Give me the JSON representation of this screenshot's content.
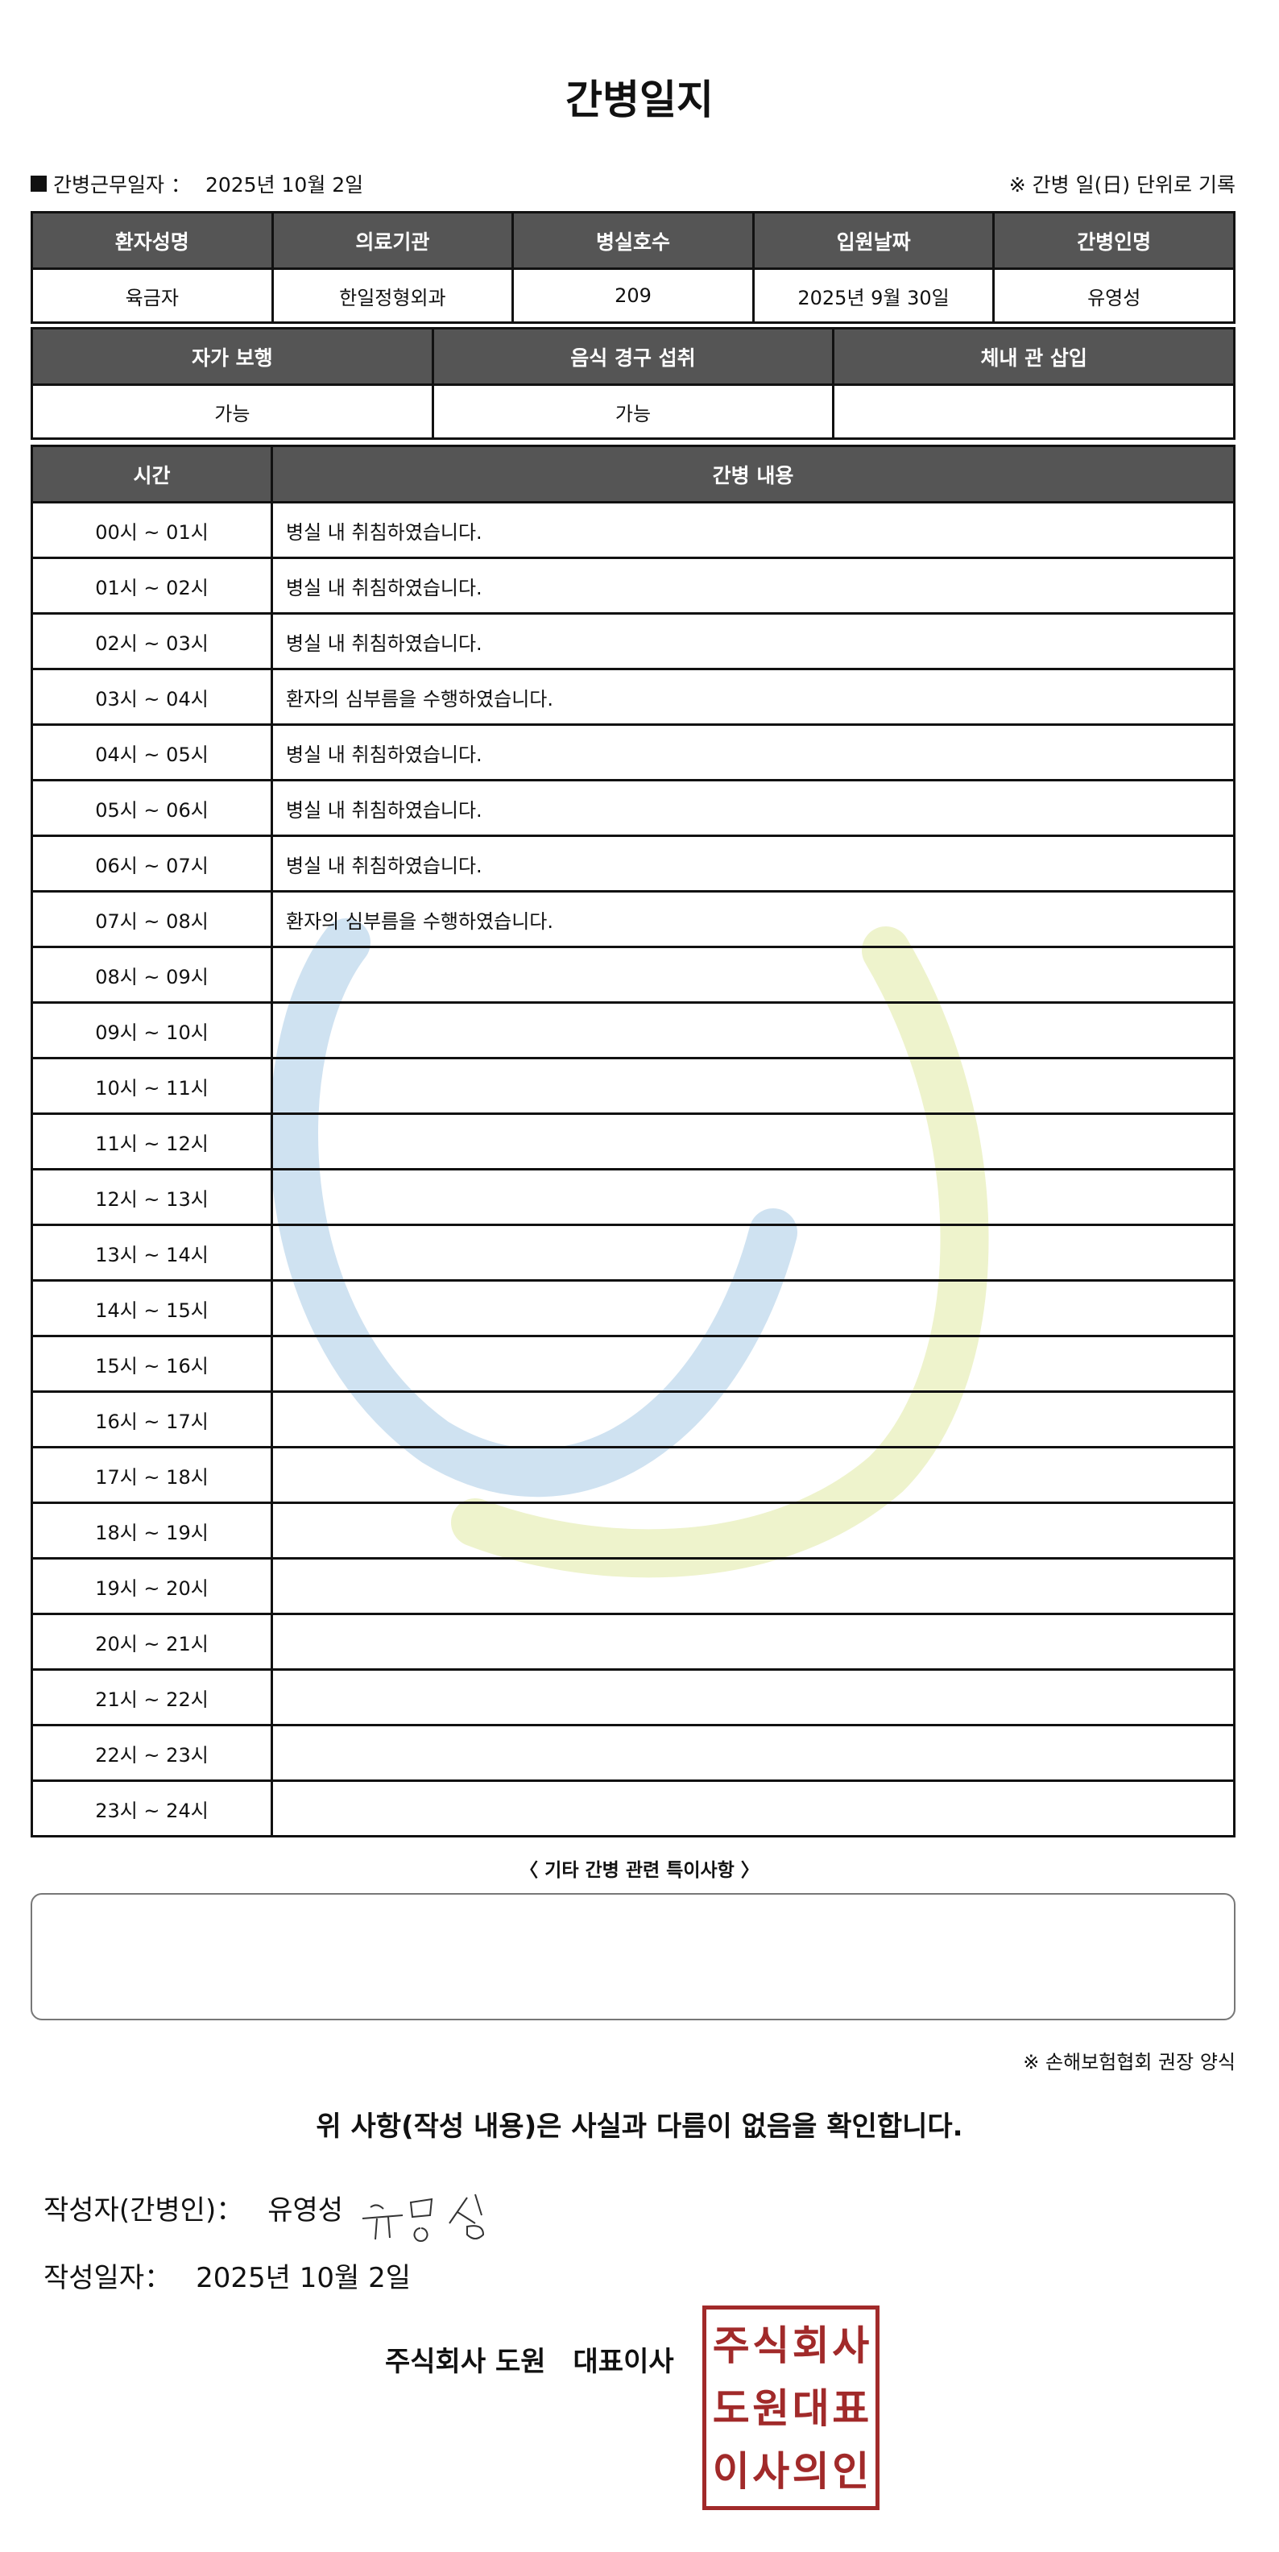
{
  "title": "간병일지",
  "meta": {
    "work_date_label": "간병근무일자 ：",
    "work_date": "2025년 10월 2일",
    "note": "※ 간병 일(日) 단위로 기록"
  },
  "patient_table": {
    "headers": [
      "환자성명",
      "의료기관",
      "병실호수",
      "입원날짜",
      "간병인명"
    ],
    "values": [
      "육금자",
      "한일정형외과",
      "209",
      "2025년 9월 30일",
      "유영성"
    ]
  },
  "status_table": {
    "headers": [
      "자가 보행",
      "음식 경구 섭취",
      "체내 관 삽입"
    ],
    "values": [
      "가능",
      "가능",
      ""
    ]
  },
  "log_table": {
    "headers": [
      "시간",
      "간병 내용"
    ],
    "rows": [
      [
        "00시 ~ 01시",
        "병실 내 취침하였습니다."
      ],
      [
        "01시 ~ 02시",
        "병실 내 취침하였습니다."
      ],
      [
        "02시 ~ 03시",
        "병실 내 취침하였습니다."
      ],
      [
        "03시 ~ 04시",
        "환자의 심부름을 수행하였습니다."
      ],
      [
        "04시 ~ 05시",
        "병실 내 취침하였습니다."
      ],
      [
        "05시 ~ 06시",
        "병실 내 취침하였습니다."
      ],
      [
        "06시 ~ 07시",
        "병실 내 취침하였습니다."
      ],
      [
        "07시 ~ 08시",
        "환자의 심부름을 수행하였습니다."
      ],
      [
        "08시 ~ 09시",
        ""
      ],
      [
        "09시 ~ 10시",
        ""
      ],
      [
        "10시 ~ 11시",
        ""
      ],
      [
        "11시 ~ 12시",
        ""
      ],
      [
        "12시 ~ 13시",
        ""
      ],
      [
        "13시 ~ 14시",
        ""
      ],
      [
        "14시 ~ 15시",
        ""
      ],
      [
        "15시 ~ 16시",
        ""
      ],
      [
        "16시 ~ 17시",
        ""
      ],
      [
        "17시 ~ 18시",
        ""
      ],
      [
        "18시 ~ 19시",
        ""
      ],
      [
        "19시 ~ 20시",
        ""
      ],
      [
        "20시 ~ 21시",
        ""
      ],
      [
        "21시 ~ 22시",
        ""
      ],
      [
        "22시 ~ 23시",
        ""
      ],
      [
        "23시 ~ 24시",
        ""
      ]
    ]
  },
  "remarks": {
    "title": "〈 기타 간병 관련 특이사항 〉",
    "value": ""
  },
  "form_note": "※ 손해보험협회 권장 양식",
  "confirm": "위 사항(작성 내용)은 사실과 다름이 없음을 확인합니다.",
  "writer": {
    "label": "작성자(간병인)：",
    "name": "유영성"
  },
  "written_date": {
    "label": "작성일자：",
    "value": "2025년 10월 2일"
  },
  "company": {
    "name": "주식회사 도원",
    "role": "대표이사"
  },
  "stamp": {
    "text": [
      "주",
      "식",
      "회",
      "사",
      "도",
      "원",
      "대",
      "표",
      "이",
      "사",
      "의",
      "인"
    ],
    "color": "#a12a2a"
  },
  "colors": {
    "header_bg": "#555555",
    "watermark_blue": "#cfe2f1",
    "watermark_yellow": "#eef3cc"
  }
}
